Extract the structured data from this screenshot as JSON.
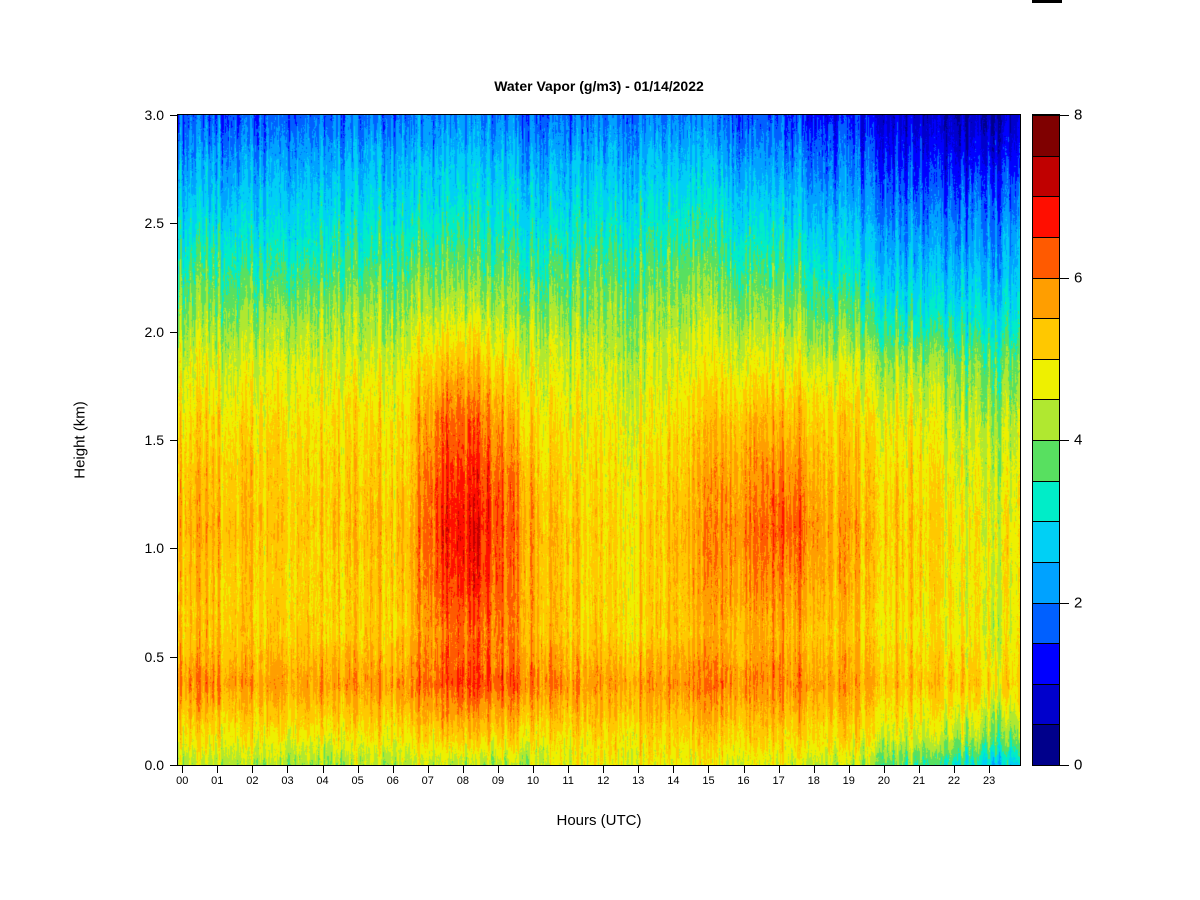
{
  "chart_data": {
    "type": "heatmap",
    "title": "Water Vapor (g/m3) - 01/14/2022",
    "xlabel": "Hours (UTC)",
    "ylabel": "Height (km)",
    "x_ticks": [
      "00",
      "01",
      "02",
      "03",
      "04",
      "05",
      "06",
      "07",
      "08",
      "09",
      "10",
      "11",
      "12",
      "13",
      "14",
      "15",
      "16",
      "17",
      "18",
      "19",
      "20",
      "21",
      "22",
      "23"
    ],
    "y_ticks": [
      "0.0",
      "0.5",
      "1.0",
      "1.5",
      "2.0",
      "2.5",
      "3.0"
    ],
    "x_range_hours": [
      0,
      24
    ],
    "y_range_km": [
      0,
      3
    ],
    "grid_lines": false,
    "legend_position": "right-colorbar",
    "axis_color": "#000000",
    "background_color": "#FFFFFF",
    "colorbar": {
      "min": 0,
      "max": 8,
      "tick_values": [
        0,
        2,
        4,
        6,
        8
      ],
      "level_step": 0.5,
      "colors": [
        "#00008B",
        "#0000CC",
        "#0000FF",
        "#0060FF",
        "#00A2FF",
        "#00D0F5",
        "#00EDC8",
        "#58E060",
        "#B0E830",
        "#EEF000",
        "#FFC800",
        "#FF9E00",
        "#FF5A00",
        "#FF0E00",
        "#C00000",
        "#7F0000"
      ]
    },
    "noise_amplitude": 0.7,
    "heatmap_grid": {
      "hours": [
        0,
        1,
        2,
        3,
        4,
        5,
        6,
        7,
        8,
        9,
        10,
        11,
        12,
        13,
        14,
        15,
        16,
        17,
        18,
        19,
        20,
        21,
        22,
        23
      ],
      "heights_km": [
        0.0,
        0.12,
        0.37,
        0.6,
        0.85,
        1.1,
        1.35,
        1.6,
        1.85,
        2.1,
        2.35,
        2.6,
        2.85,
        3.0
      ],
      "values_g_per_m3": [
        [
          4.4,
          4.2,
          4.1,
          4.1,
          4.2,
          4.3,
          4.2,
          4.4,
          4.3,
          4.2,
          4.5,
          4.7,
          4.7,
          4.8,
          4.7,
          4.8,
          4.8,
          4.7,
          4.5,
          4.2,
          3.9,
          3.6,
          3.2,
          2.6
        ],
        [
          4.9,
          4.8,
          4.7,
          4.8,
          4.8,
          4.9,
          4.8,
          5.1,
          5.2,
          5.0,
          4.9,
          4.9,
          5.0,
          5.1,
          5.0,
          5.2,
          5.3,
          5.2,
          5.1,
          4.9,
          4.7,
          4.5,
          4.2,
          3.7
        ],
        [
          5.9,
          5.7,
          5.6,
          5.7,
          5.8,
          5.8,
          5.7,
          6.3,
          6.5,
          6.2,
          6.0,
          5.7,
          5.7,
          5.8,
          5.9,
          6.1,
          6.1,
          6.0,
          5.8,
          5.6,
          5.5,
          5.4,
          5.2,
          4.9
        ],
        [
          5.3,
          5.2,
          5.1,
          5.2,
          5.2,
          5.3,
          5.2,
          6.0,
          6.2,
          5.8,
          5.4,
          5.1,
          5.1,
          5.2,
          5.3,
          5.6,
          5.7,
          5.6,
          5.4,
          5.2,
          5.1,
          5.0,
          4.8,
          4.5
        ],
        [
          5.3,
          5.2,
          5.1,
          5.1,
          5.2,
          5.3,
          5.2,
          6.4,
          6.7,
          6.0,
          5.4,
          5.1,
          5.0,
          5.2,
          5.4,
          5.9,
          6.1,
          6.0,
          5.7,
          5.4,
          5.3,
          5.1,
          4.8,
          4.6
        ],
        [
          5.5,
          5.4,
          5.2,
          5.2,
          5.3,
          5.4,
          5.3,
          6.6,
          6.9,
          6.1,
          5.4,
          5.1,
          5.0,
          5.2,
          5.5,
          6.0,
          6.3,
          6.4,
          5.8,
          5.5,
          5.4,
          5.2,
          4.8,
          4.6
        ],
        [
          5.3,
          5.2,
          5.1,
          5.1,
          5.2,
          5.2,
          5.1,
          6.4,
          6.6,
          5.9,
          5.2,
          4.9,
          4.9,
          5.1,
          5.3,
          5.8,
          6.0,
          6.0,
          5.5,
          5.3,
          5.2,
          5.0,
          4.6,
          4.4
        ],
        [
          5.0,
          4.9,
          4.9,
          4.9,
          5.0,
          5.0,
          4.9,
          6.1,
          6.2,
          5.4,
          4.9,
          4.7,
          4.7,
          4.8,
          5.0,
          5.4,
          5.6,
          5.5,
          5.2,
          5.0,
          4.9,
          4.7,
          4.3,
          4.1
        ],
        [
          4.6,
          4.5,
          4.5,
          4.6,
          4.6,
          4.6,
          4.6,
          5.3,
          5.4,
          4.8,
          4.6,
          4.4,
          4.4,
          4.5,
          4.6,
          4.8,
          4.9,
          4.8,
          4.6,
          4.4,
          4.3,
          4.2,
          3.9,
          3.6
        ],
        [
          4.0,
          3.9,
          3.9,
          4.0,
          4.1,
          4.1,
          4.0,
          4.3,
          4.4,
          4.1,
          4.0,
          3.9,
          4.0,
          4.1,
          4.2,
          4.2,
          4.2,
          4.1,
          3.8,
          3.5,
          3.3,
          3.2,
          3.0,
          2.8
        ],
        [
          3.4,
          3.3,
          3.2,
          3.3,
          3.5,
          3.5,
          3.4,
          3.6,
          3.7,
          3.5,
          3.4,
          3.4,
          3.5,
          3.6,
          3.7,
          3.6,
          3.6,
          3.4,
          3.1,
          2.8,
          2.6,
          2.5,
          2.3,
          2.2
        ],
        [
          2.7,
          2.6,
          2.6,
          2.7,
          2.9,
          2.9,
          2.8,
          3.0,
          3.1,
          2.9,
          2.8,
          2.8,
          2.9,
          3.0,
          3.1,
          3.0,
          2.9,
          2.7,
          2.4,
          2.2,
          2.0,
          1.9,
          1.8,
          1.7
        ],
        [
          2.1,
          2.0,
          2.0,
          2.1,
          2.3,
          2.3,
          2.2,
          2.4,
          2.5,
          2.3,
          2.2,
          2.2,
          2.3,
          2.4,
          2.4,
          2.3,
          2.2,
          2.0,
          1.8,
          1.6,
          1.4,
          1.2,
          1.0,
          0.9
        ],
        [
          1.7,
          1.6,
          1.6,
          1.7,
          1.9,
          1.9,
          1.8,
          2.0,
          2.1,
          1.9,
          1.8,
          1.8,
          1.9,
          2.0,
          2.0,
          1.9,
          1.8,
          1.6,
          1.4,
          1.2,
          1.0,
          0.8,
          0.6,
          0.5
        ]
      ]
    }
  }
}
